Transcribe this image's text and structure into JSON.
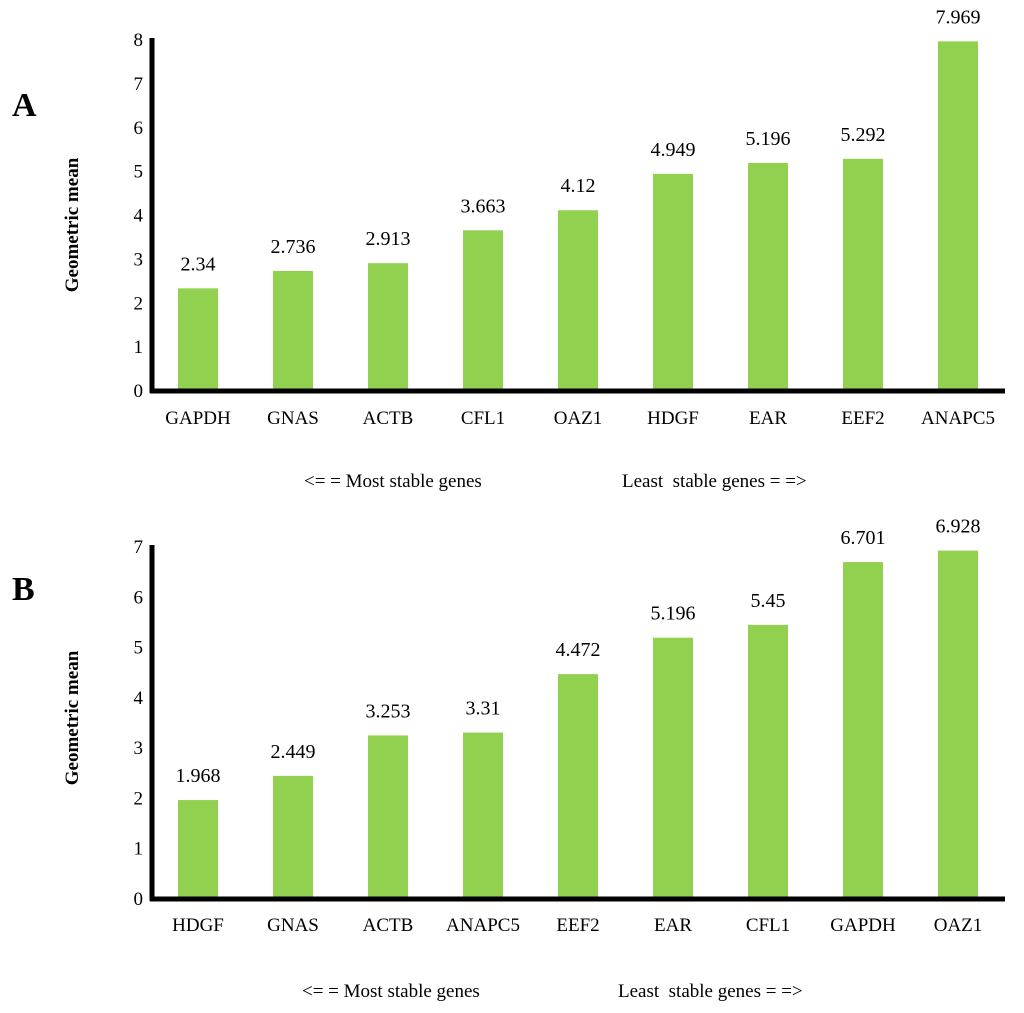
{
  "chart_data": [
    {
      "panel": "A",
      "type": "bar",
      "ylabel": "Geometric mean",
      "xlabel": "",
      "title": "",
      "ylim": [
        0,
        8
      ],
      "yticks": [
        "0",
        "1",
        "2",
        "3",
        "4",
        "5",
        "6",
        "7",
        "8"
      ],
      "categories": [
        "GAPDH",
        "GNAS",
        "ACTB",
        "CFL1",
        "OAZ1",
        "HDGF",
        "EAR",
        "EEF2",
        "ANAPC5"
      ],
      "values": [
        2.34,
        2.736,
        2.913,
        3.663,
        4.12,
        4.949,
        5.196,
        5.292,
        7.969
      ],
      "value_labels": [
        "2.34",
        "2.736",
        "2.913",
        "3.663",
        "4.12",
        "4.949",
        "5.196",
        "5.292",
        "7.969"
      ],
      "bar_color": "#92d050",
      "note_left": "<= = Most stable genes",
      "note_right": "Least  stable genes = =>"
    },
    {
      "panel": "B",
      "type": "bar",
      "ylabel": "Geometric mean",
      "xlabel": "",
      "title": "",
      "ylim": [
        0,
        7
      ],
      "yticks": [
        "0",
        "1",
        "2",
        "3",
        "4",
        "5",
        "6",
        "7"
      ],
      "categories": [
        "HDGF",
        "GNAS",
        "ACTB",
        "ANAPC5",
        "EEF2",
        "EAR",
        "CFL1",
        "GAPDH",
        "OAZ1"
      ],
      "values": [
        1.968,
        2.449,
        3.253,
        3.31,
        4.472,
        5.196,
        5.45,
        6.701,
        6.928
      ],
      "value_labels": [
        "1.968",
        "2.449",
        "3.253",
        "3.31",
        "4.472",
        "5.196",
        "5.45",
        "6.701",
        "6.928"
      ],
      "bar_color": "#92d050",
      "note_left": "<= = Most stable genes",
      "note_right": "Least  stable genes = =>"
    }
  ]
}
